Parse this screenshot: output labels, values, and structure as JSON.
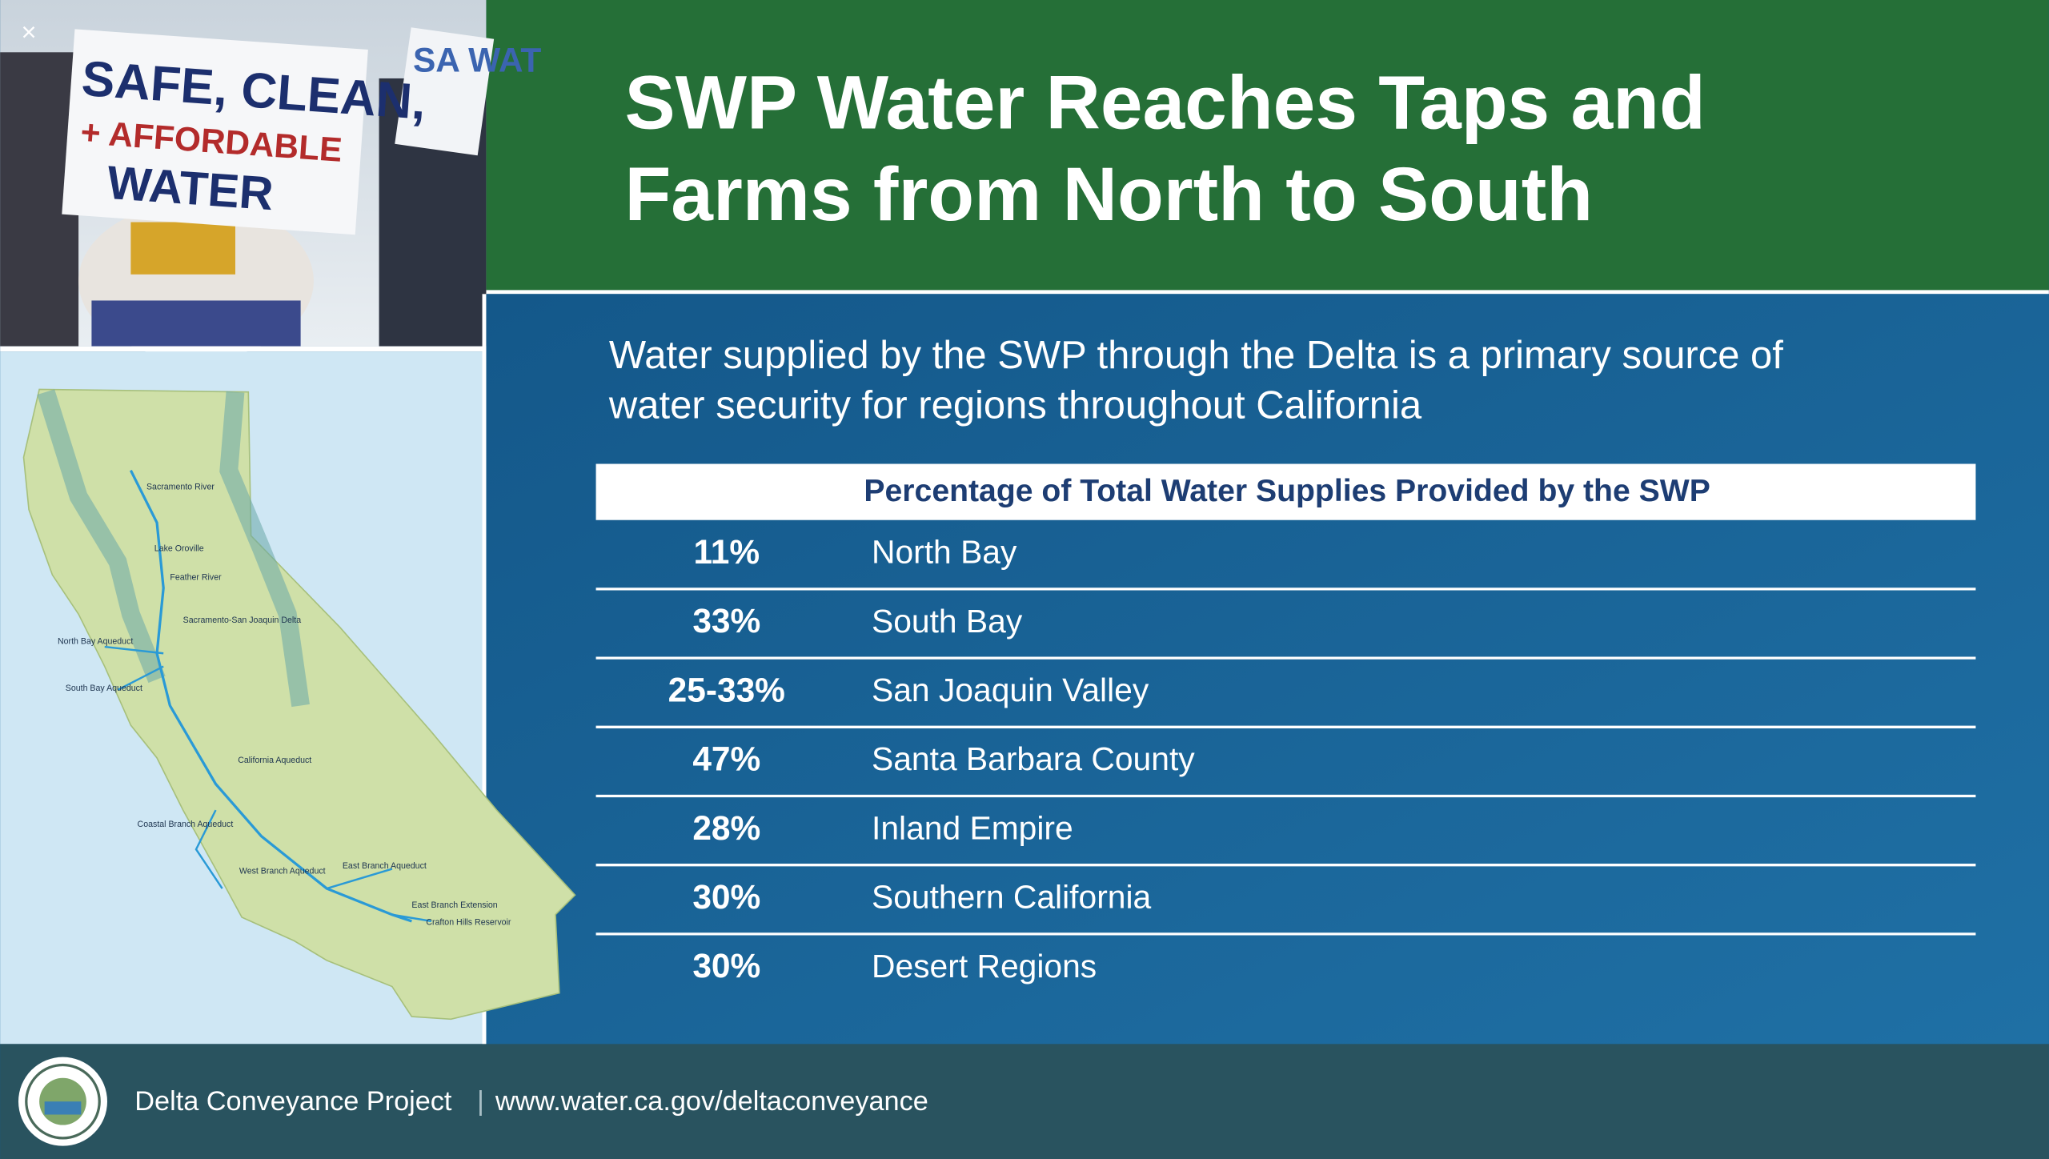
{
  "header": {
    "title_lines": [
      "SWP Water Reaches Taps and",
      "Farms from North to South"
    ]
  },
  "subtitle_lines": [
    "Water supplied by the SWP through the Delta is a primary source of",
    "water security for regions throughout California"
  ],
  "photo": {
    "sign_lines": [
      "SAFE, CLEAN,",
      "+ AFFORDABLE",
      "WATER"
    ],
    "second_sign": "SA WAT"
  },
  "map": {
    "labels": [
      "Sacramento River",
      "Lake Oroville",
      "Feather River",
      "Sacramento-San Joaquin Delta",
      "North Bay Aqueduct",
      "South Bay Aqueduct",
      "California Aqueduct",
      "Coastal Branch Aqueduct",
      "West Branch Aqueduct",
      "East Branch Aqueduct",
      "East Branch Extension",
      "Crafton Hills Reservoir"
    ]
  },
  "table": {
    "header": "Percentage of Total Water Supplies Provided by the SWP",
    "rows": [
      {
        "percent": "11%",
        "region": "North Bay"
      },
      {
        "percent": "33%",
        "region": "South Bay"
      },
      {
        "percent": "25-33%",
        "region": "San Joaquin Valley"
      },
      {
        "percent": "47%",
        "region": "Santa Barbara County"
      },
      {
        "percent": "28%",
        "region": "Inland Empire"
      },
      {
        "percent": "30%",
        "region": "Southern California"
      },
      {
        "percent": "30%",
        "region": "Desert Regions"
      }
    ]
  },
  "footer": {
    "project": "Delta Conveyance Project",
    "separator": "|",
    "url": "www.water.ca.gov/deltaconveyance"
  },
  "close_icon": "×"
}
